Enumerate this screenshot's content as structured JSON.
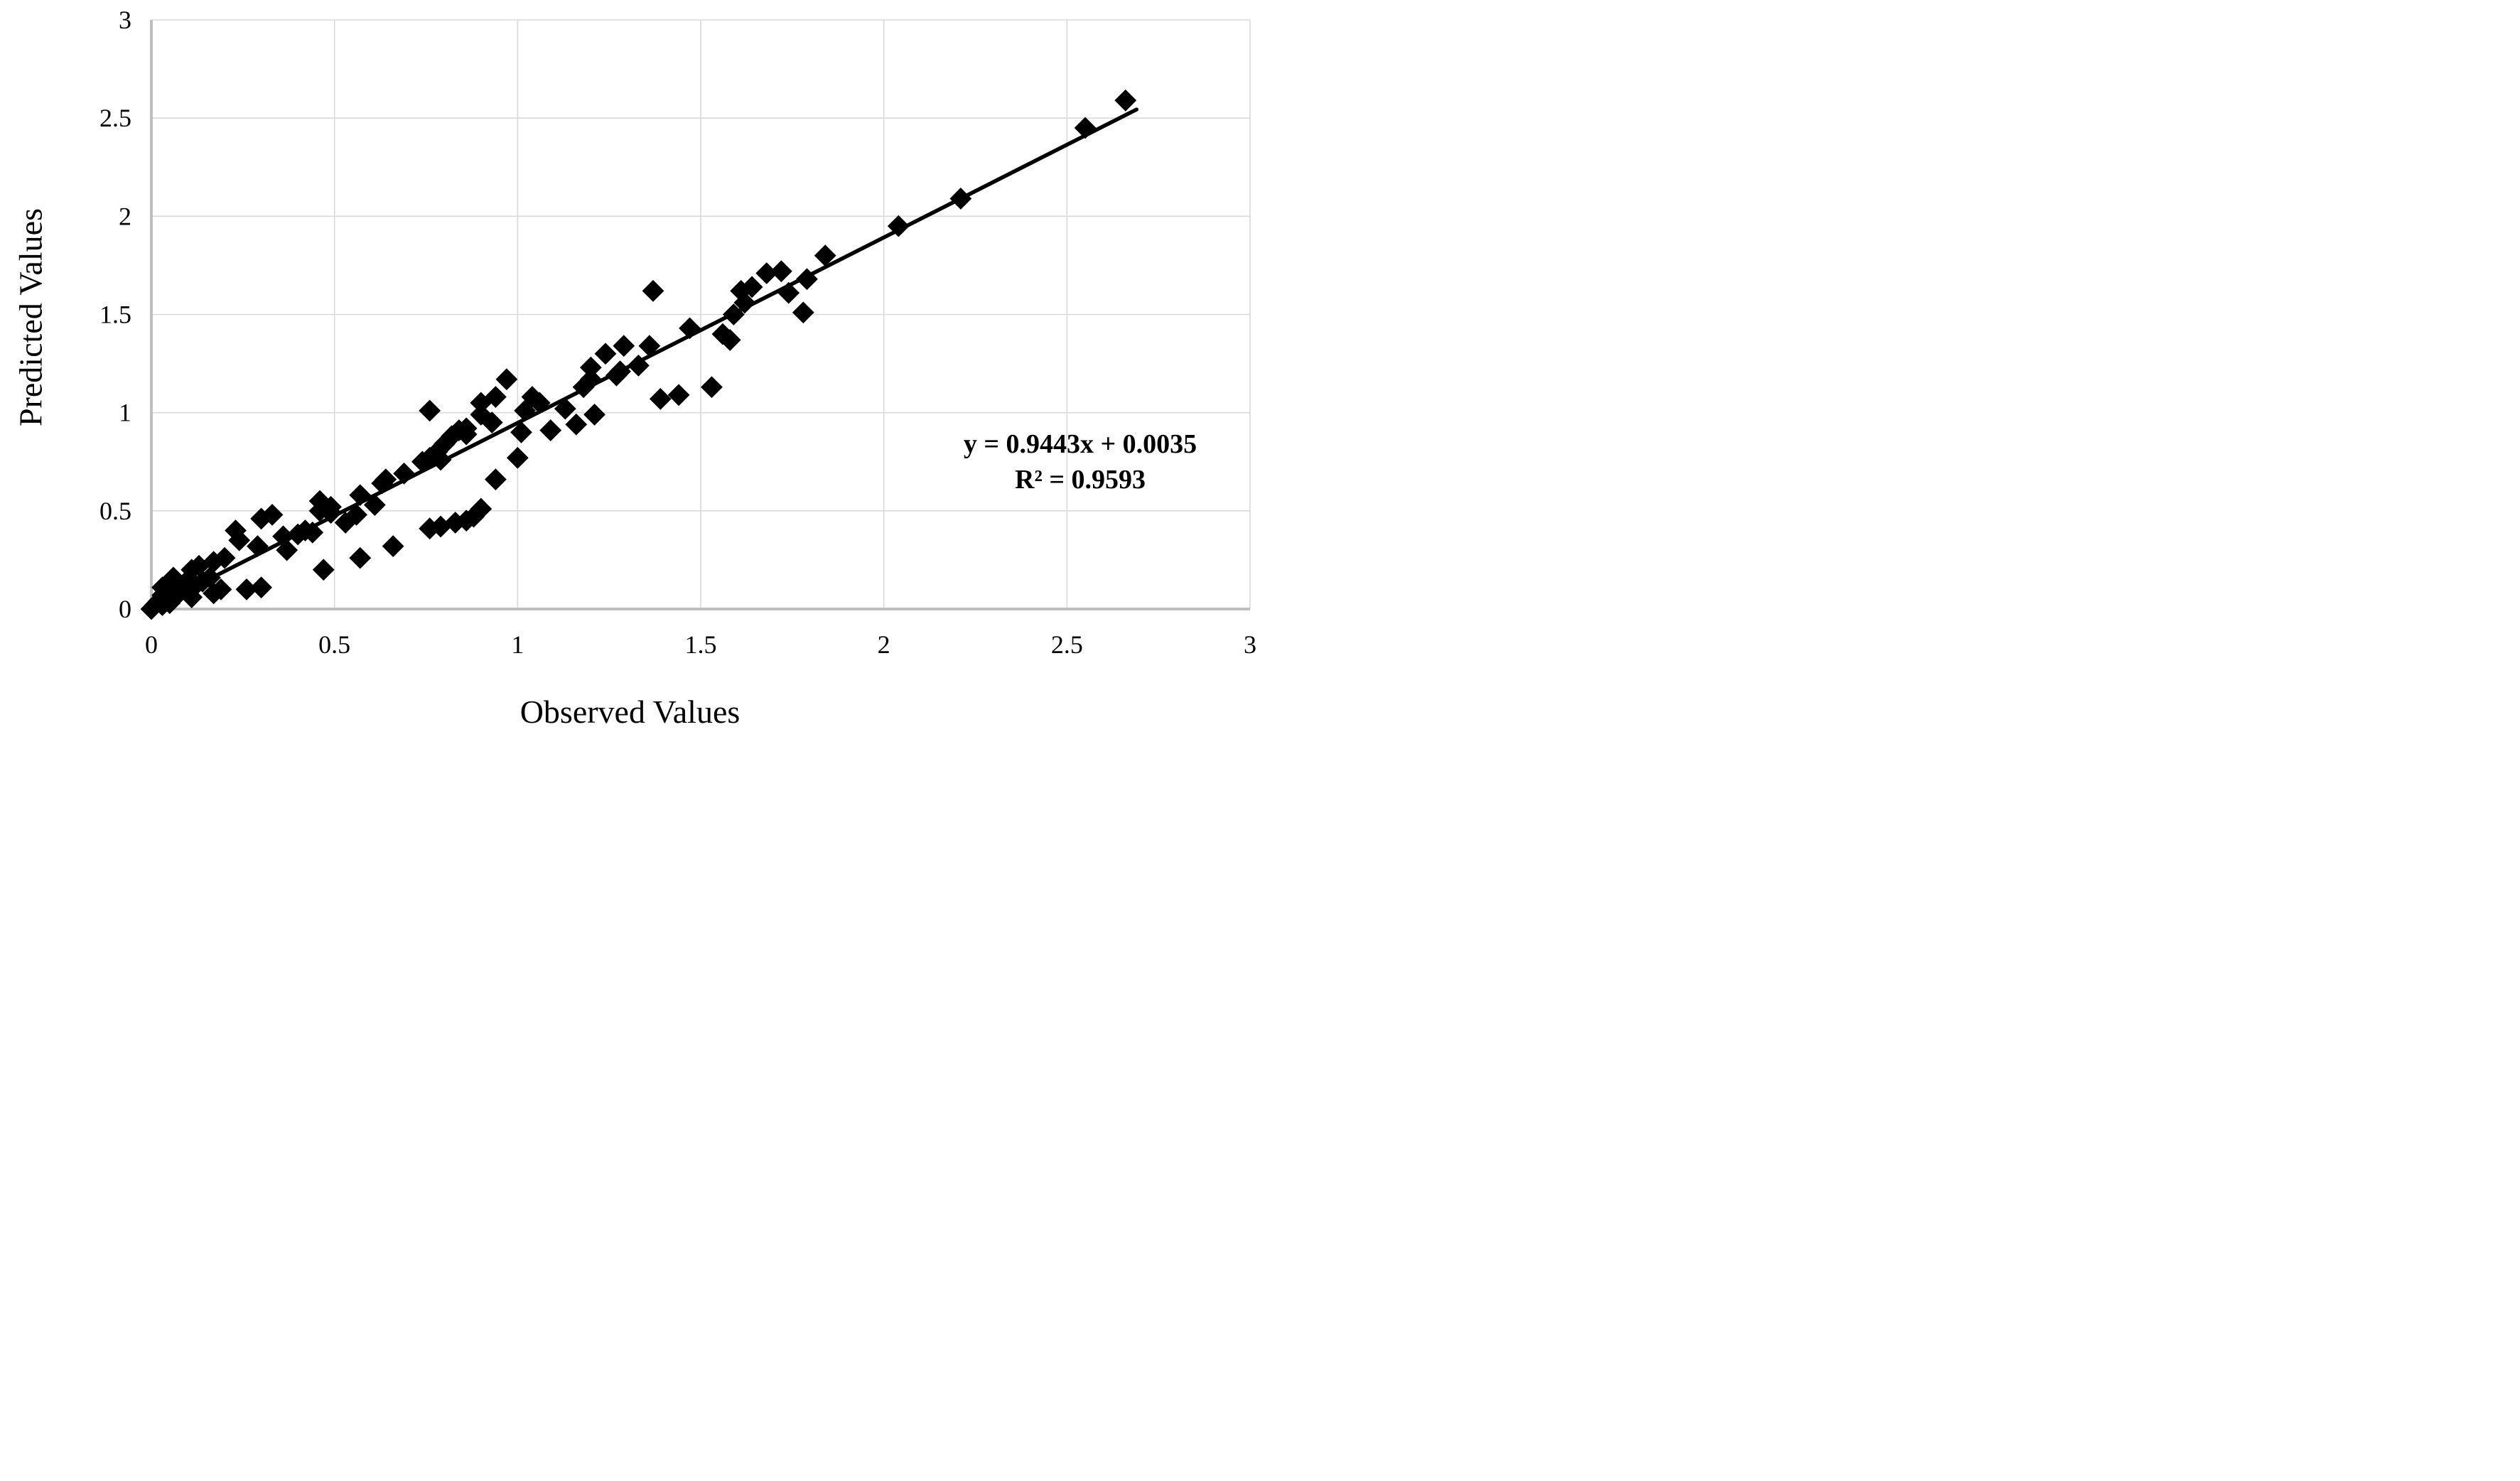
{
  "chart_data": {
    "type": "scatter",
    "title": "",
    "xlabel": "Observed Values",
    "ylabel": "Predicted Values",
    "xlim": [
      0,
      3
    ],
    "ylim": [
      0,
      3
    ],
    "grid": true,
    "legend_position": "none",
    "xticks": {
      "values": [
        0,
        0.5,
        1,
        1.5,
        2,
        2.5,
        3
      ],
      "labels": [
        "0",
        "0.5",
        "1",
        "1.5",
        "2",
        "2.5",
        "3"
      ]
    },
    "yticks": {
      "values": [
        0,
        0.5,
        1,
        1.5,
        2,
        2.5,
        3
      ],
      "labels": [
        "0",
        "0.5",
        "1",
        "1.5",
        "2",
        "2.5",
        "3"
      ]
    },
    "colors": {
      "grid": "#d9d9d9",
      "axis": "#bfbfbf",
      "marker_stroke": "#000000",
      "marker_fill": "#ffffff",
      "trendline": "#000000",
      "text": "#000000",
      "background": "#ffffff"
    },
    "marker": {
      "shape": "diamond",
      "pattern": "dotted",
      "half_diagonal": 13,
      "stroke_width": 3.4,
      "dot_radius": 1.5,
      "dot_offset": 4.6
    },
    "trendline": {
      "slope": 0.9443,
      "intercept": 0.0035,
      "x_start": 0,
      "x_end": 2.69,
      "width": 5.5,
      "equation_line1": "y = 0.9443x + 0.0035",
      "equation_line2": "R² = 0.9593"
    },
    "points": [
      [
        0.0,
        0.0
      ],
      [
        0.01,
        0.02
      ],
      [
        0.02,
        0.04
      ],
      [
        0.03,
        0.02
      ],
      [
        0.03,
        0.07
      ],
      [
        0.03,
        0.11
      ],
      [
        0.04,
        0.05
      ],
      [
        0.05,
        0.03
      ],
      [
        0.06,
        0.07
      ],
      [
        0.06,
        0.11
      ],
      [
        0.06,
        0.16
      ],
      [
        0.07,
        0.07
      ],
      [
        0.08,
        0.09
      ],
      [
        0.09,
        0.13
      ],
      [
        0.1,
        0.1
      ],
      [
        0.11,
        0.06
      ],
      [
        0.11,
        0.2
      ],
      [
        0.12,
        0.12
      ],
      [
        0.13,
        0.22
      ],
      [
        0.14,
        0.14
      ],
      [
        0.16,
        0.16
      ],
      [
        0.17,
        0.08
      ],
      [
        0.17,
        0.24
      ],
      [
        0.19,
        0.1
      ],
      [
        0.2,
        0.26
      ],
      [
        0.23,
        0.4
      ],
      [
        0.24,
        0.35
      ],
      [
        0.26,
        0.1
      ],
      [
        0.29,
        0.32
      ],
      [
        0.3,
        0.11
      ],
      [
        0.3,
        0.46
      ],
      [
        0.33,
        0.48
      ],
      [
        0.36,
        0.37
      ],
      [
        0.37,
        0.3
      ],
      [
        0.4,
        0.38
      ],
      [
        0.42,
        0.4
      ],
      [
        0.44,
        0.39
      ],
      [
        0.46,
        0.5
      ],
      [
        0.46,
        0.55
      ],
      [
        0.47,
        0.2
      ],
      [
        0.49,
        0.49
      ],
      [
        0.49,
        0.52
      ],
      [
        0.53,
        0.44
      ],
      [
        0.56,
        0.48
      ],
      [
        0.57,
        0.26
      ],
      [
        0.57,
        0.58
      ],
      [
        0.61,
        0.53
      ],
      [
        0.63,
        0.64
      ],
      [
        0.64,
        0.66
      ],
      [
        0.66,
        0.32
      ],
      [
        0.69,
        0.69
      ],
      [
        0.74,
        0.75
      ],
      [
        0.76,
        0.41
      ],
      [
        0.76,
        0.77
      ],
      [
        0.76,
        1.01
      ],
      [
        0.78,
        0.8
      ],
      [
        0.79,
        0.42
      ],
      [
        0.79,
        0.76
      ],
      [
        0.8,
        0.84
      ],
      [
        0.82,
        0.88
      ],
      [
        0.83,
        0.44
      ],
      [
        0.84,
        0.91
      ],
      [
        0.86,
        0.45
      ],
      [
        0.86,
        0.89
      ],
      [
        0.86,
        0.92
      ],
      [
        0.88,
        0.47
      ],
      [
        0.9,
        0.51
      ],
      [
        0.9,
        0.99
      ],
      [
        0.9,
        1.05
      ],
      [
        0.93,
        0.95
      ],
      [
        0.94,
        0.66
      ],
      [
        0.94,
        1.08
      ],
      [
        0.97,
        1.17
      ],
      [
        1.0,
        0.77
      ],
      [
        1.01,
        0.9
      ],
      [
        1.02,
        1.01
      ],
      [
        1.04,
        1.08
      ],
      [
        1.06,
        1.05
      ],
      [
        1.09,
        0.91
      ],
      [
        1.13,
        1.02
      ],
      [
        1.16,
        0.94
      ],
      [
        1.18,
        1.13
      ],
      [
        1.2,
        1.17
      ],
      [
        1.2,
        1.23
      ],
      [
        1.21,
        0.99
      ],
      [
        1.24,
        1.3
      ],
      [
        1.27,
        1.19
      ],
      [
        1.28,
        1.21
      ],
      [
        1.29,
        1.34
      ],
      [
        1.33,
        1.24
      ],
      [
        1.36,
        1.34
      ],
      [
        1.37,
        1.62
      ],
      [
        1.39,
        1.07
      ],
      [
        1.44,
        1.09
      ],
      [
        1.47,
        1.43
      ],
      [
        1.53,
        1.13
      ],
      [
        1.56,
        1.4
      ],
      [
        1.58,
        1.37
      ],
      [
        1.59,
        1.5
      ],
      [
        1.61,
        1.62
      ],
      [
        1.62,
        1.56
      ],
      [
        1.64,
        1.64
      ],
      [
        1.68,
        1.71
      ],
      [
        1.72,
        1.72
      ],
      [
        1.74,
        1.61
      ],
      [
        1.78,
        1.51
      ],
      [
        1.79,
        1.68
      ],
      [
        1.84,
        1.8
      ],
      [
        2.04,
        1.95
      ],
      [
        2.21,
        2.09
      ],
      [
        2.55,
        2.45
      ],
      [
        2.66,
        2.59
      ]
    ]
  }
}
